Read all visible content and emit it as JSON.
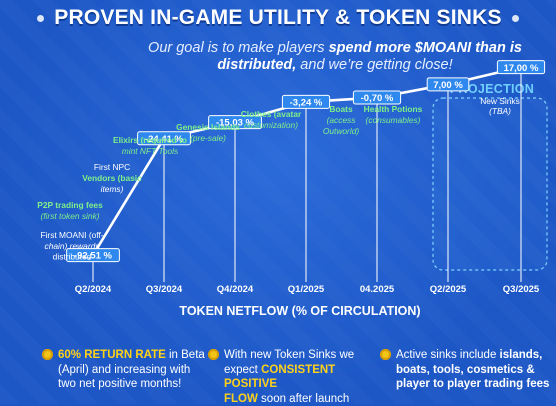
{
  "title": "PROVEN IN-GAME UTILITY & TOKEN SINKS",
  "subtitle": {
    "part1": "Our goal is to make players ",
    "emph1": "spend more $MOANI than is distributed,",
    "part2": " and we’re getting close!"
  },
  "projection_label": "PROJECTION",
  "colors": {
    "background": "#1d57c6",
    "accent_green": "#7ff08a",
    "label_box": "#2f88ee",
    "highlight_yellow": "#ffd21a",
    "projection_cyan": "#6fd0ff"
  },
  "chart_data": {
    "type": "line",
    "xlabel": "TOKEN NETFLOW (% OF CIRCULATION)",
    "categories": [
      "Q2/2024",
      "Q3/2024",
      "Q4/2024",
      "Q1/2025",
      "04.2025",
      "Q2/2025",
      "Q3/2025"
    ],
    "series": [
      {
        "values": [
          -92.51,
          -24.41,
          -15.03,
          -3.24,
          -0.7,
          7.0,
          17.0
        ],
        "value_labels": [
          "-92,51 %",
          "-24,41 %",
          "-15,03 %",
          "-3,24 %",
          "-0,70 %",
          "7,00 %",
          "17,00 %"
        ]
      }
    ],
    "annotations": [
      {
        "category": "Q2/2024",
        "lines": [
          {
            "text": "P2P trading fees",
            "style": "green-bold"
          },
          {
            "text": "(first token sink)",
            "style": "green-italic"
          },
          {
            "text": "First MOANI (off-",
            "style": "mixed"
          },
          {
            "text": "chain) rewards",
            "style": "italic"
          },
          {
            "text": "distributed",
            "style": "plain"
          }
        ]
      },
      {
        "category": "Q3/2024",
        "lines": [
          {
            "text": "Elixirs (required to",
            "style": "green-bold"
          },
          {
            "text": "mint NFT Tools",
            "style": "green-italic"
          },
          {
            "text": "First NPC",
            "style": "plain"
          },
          {
            "text": "Vendors (basic",
            "style": "green-bold"
          },
          {
            "text": "items)",
            "style": "italic"
          }
        ]
      },
      {
        "category": "Q4/2024",
        "lines": [
          {
            "text": "Genesis Islands",
            "style": "green-bold"
          },
          {
            "text": "(pre-sale)",
            "style": "green-italic"
          }
        ]
      },
      {
        "category": "Q1/2025",
        "lines": [
          {
            "text": "Clothes (avatar",
            "style": "green-bold"
          },
          {
            "text": "customization)",
            "style": "green-italic"
          }
        ]
      },
      {
        "category": "Q1/2025b",
        "lines": [
          {
            "text": "Boats",
            "style": "green-bold"
          },
          {
            "text": "(access",
            "style": "green-italic"
          },
          {
            "text": "Outworld)",
            "style": "green-italic"
          }
        ]
      },
      {
        "category": "04.2025",
        "lines": [
          {
            "text": "Health Potions",
            "style": "green-bold"
          },
          {
            "text": "(consumables)",
            "style": "green-italic"
          }
        ]
      },
      {
        "category": "Q3/2025",
        "lines": [
          {
            "text": "New Sinks",
            "style": "plain"
          },
          {
            "text": "(TBA)",
            "style": "italic"
          }
        ]
      }
    ]
  },
  "notes": [
    {
      "highlight": "60% RETURN RATE",
      "text1": " in Beta",
      "text2": "(April) and increasing with",
      "text3": "two net positive months!"
    },
    {
      "text1": "With new Token Sinks we",
      "text2_pre": "expect ",
      "highlight": "CONSISTENT POSITIVE",
      "highlight2": "FLOW",
      "text3": " soon after launch"
    },
    {
      "text1_pre": "Active sinks include ",
      "b1": "islands,",
      "b2": "boats, tools, cosmetics &",
      "b3": "player to player trading fees"
    }
  ]
}
